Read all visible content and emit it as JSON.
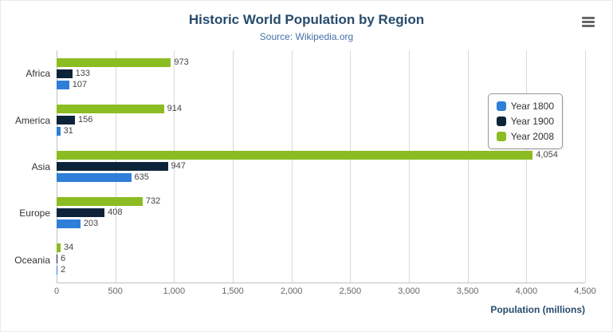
{
  "icons": {
    "export_menu": "hamburger-menu-icon"
  },
  "chart_data": {
    "type": "bar",
    "orientation": "horizontal",
    "title": "Historic World Population by Region",
    "subtitle": "Source: Wikipedia.org",
    "categories": [
      "Africa",
      "America",
      "Asia",
      "Europe",
      "Oceania"
    ],
    "series": [
      {
        "name": "Year 1800",
        "color": "#2f7ed8",
        "values": [
          107,
          31,
          635,
          203,
          2
        ]
      },
      {
        "name": "Year 1900",
        "color": "#0d233a",
        "values": [
          133,
          156,
          947,
          408,
          6
        ]
      },
      {
        "name": "Year 2008",
        "color": "#8bbc21",
        "values": [
          973,
          914,
          4054,
          732,
          34
        ]
      }
    ],
    "bar_display_order": [
      "Year 2008",
      "Year 1900",
      "Year 1800"
    ],
    "xlabel": "Population (millions)",
    "ylabel": "",
    "xlim": [
      0,
      4500
    ],
    "xticks": [
      0,
      500,
      1000,
      1500,
      2000,
      2500,
      3000,
      3500,
      4000,
      4500
    ],
    "grid": true,
    "legend_position": "right",
    "data_labels": true,
    "title_color": "#274b6d",
    "subtitle_color": "#4572a7"
  }
}
